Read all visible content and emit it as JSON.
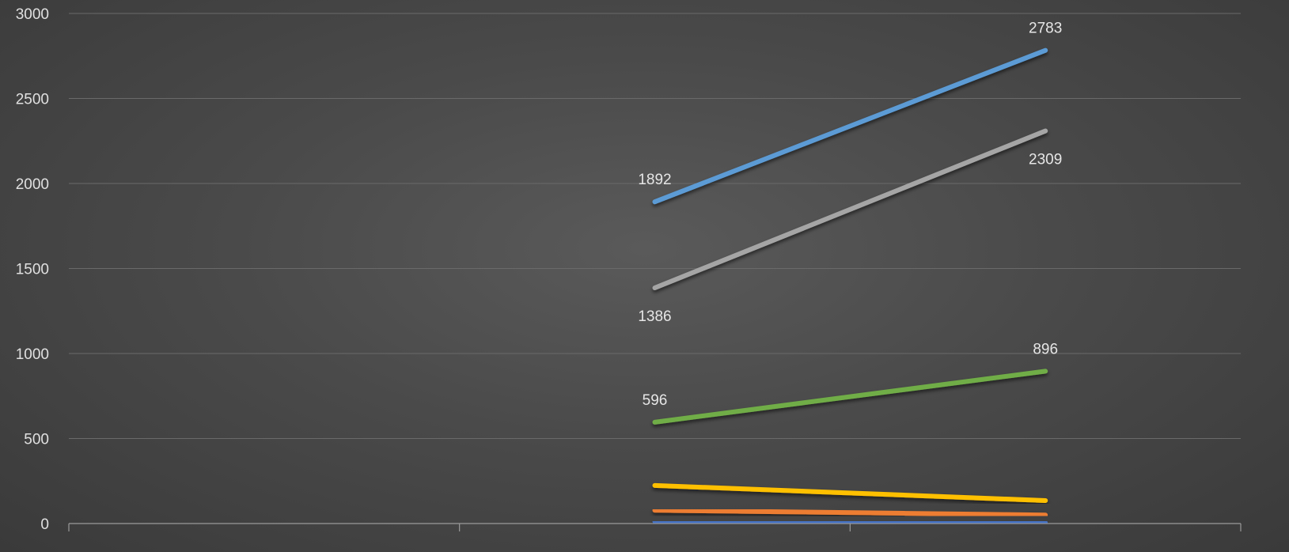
{
  "chart_data": {
    "type": "line",
    "title": "",
    "xlabel": "",
    "ylabel": "",
    "categories": [
      "",
      "",
      ""
    ],
    "ylim": [
      0,
      3000
    ],
    "yticks": [
      0,
      500,
      1000,
      1500,
      2000,
      2500,
      3000
    ],
    "grid": true,
    "legend": "none",
    "series": [
      {
        "color": "#5b9bd5",
        "values": [
          null,
          1892,
          2783
        ],
        "labels": [
          "",
          "1892",
          "2783"
        ],
        "label_pos": [
          "",
          "above",
          "above"
        ]
      },
      {
        "color": "#a5a5a5",
        "values": [
          null,
          1386,
          2309
        ],
        "labels": [
          "",
          "1386",
          "2309"
        ],
        "label_pos": [
          "",
          "below",
          "below"
        ]
      },
      {
        "color": "#70ad47",
        "values": [
          null,
          596,
          896
        ],
        "labels": [
          "",
          "596",
          "896"
        ],
        "label_pos": [
          "",
          "above",
          "above"
        ]
      },
      {
        "color": "#ffc000",
        "values": [
          null,
          224,
          135
        ],
        "labels": [
          "",
          "",
          ""
        ],
        "label_pos": [
          "",
          "",
          ""
        ]
      },
      {
        "color": "#ed7d31",
        "values": [
          null,
          78,
          50
        ],
        "labels": [
          "",
          "",
          ""
        ],
        "label_pos": [
          "",
          "",
          ""
        ]
      },
      {
        "color": "#4472c4",
        "values": [
          null,
          12,
          4
        ],
        "labels": [
          "",
          "",
          ""
        ],
        "label_pos": [
          "",
          "",
          ""
        ]
      }
    ]
  }
}
